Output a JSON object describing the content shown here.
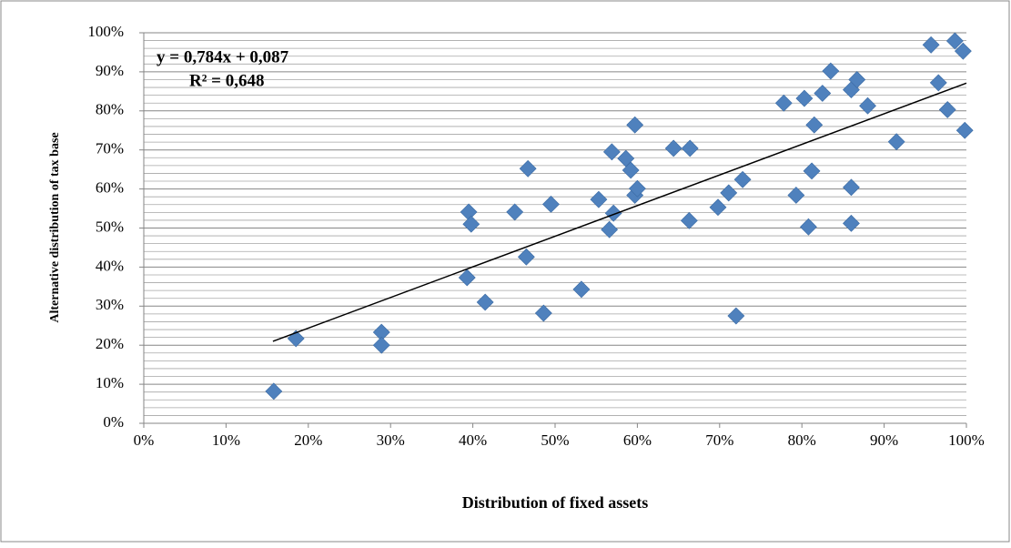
{
  "chart_data": {
    "type": "scatter",
    "x_label": "Distribution of fixed assets",
    "y_label": "Alternative distribution of tax base",
    "annotations": [
      "y = 0,784x + 0,087",
      "R² = 0,648"
    ],
    "color": "#4f81bd",
    "grid": true,
    "xlim": [
      0,
      100
    ],
    "ylim": [
      0,
      100
    ],
    "xticks": [
      {
        "value": 0,
        "label": "0%"
      },
      {
        "value": 10,
        "label": "10%"
      },
      {
        "value": 20,
        "label": "20%"
      },
      {
        "value": 30,
        "label": "30%"
      },
      {
        "value": 40,
        "label": "40%"
      },
      {
        "value": 50,
        "label": "50%"
      },
      {
        "value": 60,
        "label": "60%"
      },
      {
        "value": 70,
        "label": "70%"
      },
      {
        "value": 80,
        "label": "80%"
      },
      {
        "value": 90,
        "label": "90%"
      },
      {
        "value": 100,
        "label": "100%"
      }
    ],
    "yticks": [
      {
        "value": 0,
        "label": "0%"
      },
      {
        "value": 10,
        "label": "10%"
      },
      {
        "value": 20,
        "label": "20%"
      },
      {
        "value": 30,
        "label": "30%"
      },
      {
        "value": 40,
        "label": "40%"
      },
      {
        "value": 50,
        "label": "50%"
      },
      {
        "value": 60,
        "label": "60%"
      },
      {
        "value": 70,
        "label": "70%"
      },
      {
        "value": 80,
        "label": "80%"
      },
      {
        "value": 90,
        "label": "90%"
      },
      {
        "value": 100,
        "label": "100%"
      }
    ],
    "y_minor_ticks": [
      2,
      4,
      6,
      8,
      12,
      14,
      16,
      18,
      22,
      24,
      26,
      28,
      32,
      34,
      36,
      38,
      42,
      44,
      46,
      48,
      52,
      54,
      56,
      58,
      62,
      64,
      66,
      68,
      72,
      74,
      76,
      78,
      82,
      84,
      86,
      88,
      92,
      94,
      96,
      98
    ],
    "x": [
      15.8,
      18.5,
      28.9,
      28.9,
      39.3,
      39.5,
      39.8,
      41.5,
      45.1,
      46.7,
      46.5,
      48.6,
      49.5,
      53.2,
      55.3,
      56.9,
      56.6,
      57.1,
      58.6,
      59.2,
      59.7,
      59.7,
      60.0,
      64.4,
      66.4,
      66.3,
      69.8,
      71.1,
      72.8,
      72.0,
      77.8,
      79.3,
      80.3,
      80.8,
      81.2,
      81.5,
      82.5,
      83.5,
      86.0,
      86.0,
      86.0,
      86.7,
      88.0,
      91.5,
      95.7,
      96.6,
      97.7,
      98.6,
      99.6,
      99.8
    ],
    "values": [
      8.2,
      21.7,
      23.3,
      20.0,
      37.3,
      54.1,
      51.0,
      31.0,
      54.1,
      65.2,
      42.6,
      28.2,
      56.1,
      34.3,
      57.3,
      69.5,
      49.6,
      53.8,
      67.8,
      64.8,
      76.4,
      58.4,
      60.1,
      70.4,
      70.4,
      51.9,
      55.3,
      59.0,
      62.4,
      27.5,
      82.0,
      58.4,
      83.2,
      50.3,
      64.6,
      76.4,
      84.5,
      90.2,
      60.4,
      51.2,
      85.4,
      88.0,
      81.3,
      72.1,
      96.9,
      87.2,
      80.3,
      97.9,
      95.3,
      75.0
    ],
    "trendline": {
      "x": [
        15.7,
        100
      ],
      "y": [
        21.0,
        87.1
      ],
      "color": "#000000"
    }
  }
}
